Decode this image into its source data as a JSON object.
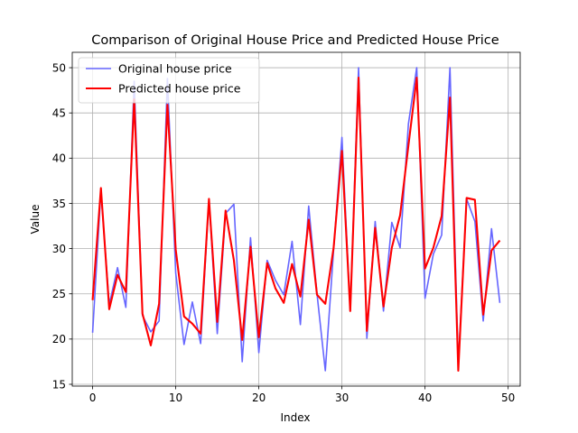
{
  "chart_data": {
    "type": "line",
    "title": "Comparison of Original House Price and Predicted House Price",
    "xlabel": "Index",
    "ylabel": "Value",
    "xlim": [
      -2.45,
      51.45
    ],
    "ylim": [
      14.8,
      51.7
    ],
    "xticks": [
      0,
      10,
      20,
      30,
      40,
      50
    ],
    "yticks": [
      15,
      20,
      25,
      30,
      35,
      40,
      45,
      50
    ],
    "grid": true,
    "legend_position": "top-left",
    "series": [
      {
        "name": "Original house price",
        "color": "#6666ff",
        "x": [
          0,
          1,
          2,
          3,
          4,
          5,
          6,
          7,
          8,
          9,
          10,
          11,
          12,
          13,
          14,
          15,
          16,
          17,
          18,
          19,
          20,
          21,
          22,
          23,
          24,
          25,
          26,
          27,
          28,
          29,
          30,
          31,
          32,
          33,
          34,
          35,
          36,
          37,
          38,
          39,
          40,
          41,
          42,
          43,
          44,
          45,
          46,
          47,
          48,
          49
        ],
        "y": [
          20.7,
          36.4,
          23.8,
          27.9,
          23.5,
          48.5,
          22.6,
          20.8,
          22.0,
          48.8,
          27.3,
          19.4,
          24.1,
          19.5,
          35.4,
          20.6,
          33.9,
          34.9,
          17.5,
          31.2,
          18.5,
          28.7,
          26.5,
          24.9,
          30.8,
          21.6,
          34.7,
          25.0,
          16.5,
          29.9,
          42.3,
          23.1,
          50.0,
          20.1,
          33.0,
          23.1,
          32.9,
          30.1,
          43.8,
          50.0,
          24.5,
          29.4,
          31.5,
          50.0,
          17.2,
          35.5,
          33.0,
          22.0,
          32.2,
          24.0
        ]
      },
      {
        "name": "Predicted house price",
        "color": "#ff0000",
        "x": [
          0,
          1,
          2,
          3,
          4,
          5,
          6,
          7,
          8,
          9,
          10,
          11,
          12,
          13,
          14,
          15,
          16,
          17,
          18,
          19,
          20,
          21,
          22,
          23,
          24,
          25,
          26,
          27,
          28,
          29,
          30,
          31,
          32,
          33,
          34,
          35,
          36,
          37,
          38,
          39,
          40,
          41,
          42,
          43,
          44,
          45,
          46,
          47,
          48,
          49
        ],
        "y": [
          24.3,
          36.7,
          23.3,
          27.1,
          25.2,
          46.5,
          22.8,
          19.3,
          23.9,
          45.9,
          29.9,
          22.5,
          21.7,
          20.6,
          35.5,
          21.9,
          34.2,
          28.7,
          19.9,
          30.2,
          20.2,
          28.4,
          25.6,
          24.0,
          28.3,
          24.7,
          33.2,
          24.9,
          23.9,
          30.1,
          40.8,
          23.1,
          48.9,
          20.9,
          32.3,
          23.6,
          30.1,
          33.7,
          41.4,
          48.9,
          27.8,
          30.1,
          33.6,
          46.7,
          16.5,
          35.6,
          35.4,
          22.7,
          29.8,
          30.9
        ]
      }
    ]
  }
}
